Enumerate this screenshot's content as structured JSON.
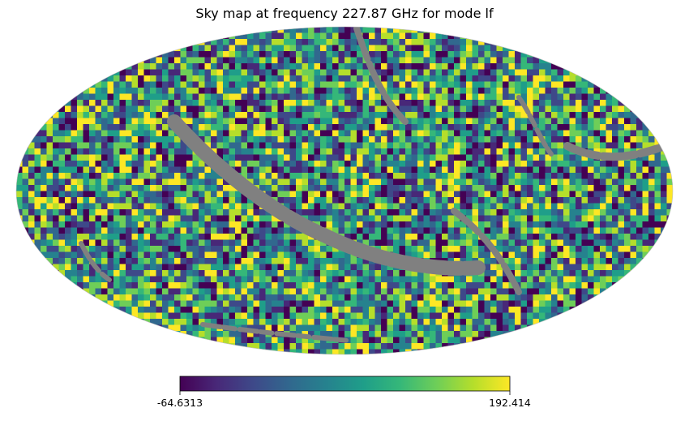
{
  "chart_data": {
    "type": "heatmap",
    "projection": "mollweide",
    "title": "Sky map at frequency 227.87 GHz for mode lf",
    "colormap": "viridis",
    "colormap_stops": [
      "#440154",
      "#482878",
      "#3e4989",
      "#31688e",
      "#26828e",
      "#1f9e89",
      "#35b779",
      "#6ece58",
      "#b5de2b",
      "#fde725"
    ],
    "missing_value_color": "#808080",
    "colorbar": {
      "min": -64.6313,
      "max": 192.414,
      "min_label": "-64.6313",
      "max_label": "192.414",
      "orientation": "horizontal",
      "position": "bottom"
    },
    "description_values": {
      "pixelization": "healpix",
      "masked_band": "galactic plane"
    }
  }
}
